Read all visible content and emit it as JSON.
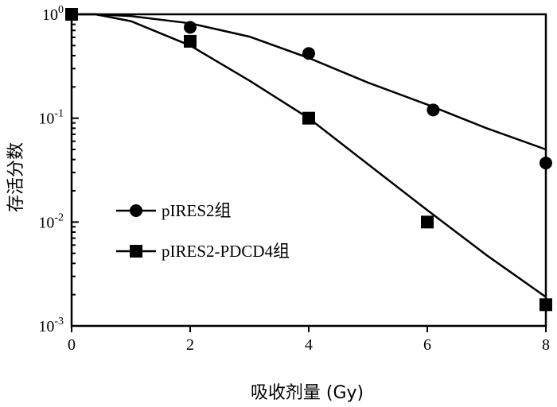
{
  "chart_data": {
    "type": "scatter",
    "title": "",
    "xlabel": "吸收剂量 (Gy)",
    "ylabel": "存活分数",
    "xlim": [
      0,
      8
    ],
    "ylim": [
      0.001,
      1
    ],
    "yscale": "log",
    "grid": false,
    "legend_position": "center-left",
    "x_ticks": [
      0,
      2,
      4,
      6,
      8
    ],
    "y_ticks": [
      {
        "base": "10",
        "exp": "0"
      },
      {
        "base": "10",
        "exp": "-1"
      },
      {
        "base": "10",
        "exp": "-2"
      },
      {
        "base": "10",
        "exp": "-3"
      }
    ],
    "series": [
      {
        "name": "pIRES2组",
        "marker": "circle",
        "points": [
          [
            0,
            1.0
          ],
          [
            2,
            0.75
          ],
          [
            4,
            0.42
          ],
          [
            6.1,
            0.12
          ],
          [
            8,
            0.037
          ]
        ],
        "fit": [
          [
            0,
            1.0
          ],
          [
            0.4,
            1.0
          ],
          [
            1,
            0.96
          ],
          [
            2,
            0.82
          ],
          [
            3,
            0.61
          ],
          [
            4,
            0.38
          ],
          [
            5,
            0.22
          ],
          [
            6,
            0.135
          ],
          [
            7,
            0.08
          ],
          [
            8,
            0.05
          ]
        ]
      },
      {
        "name": "pIRES2-PDCD4组",
        "marker": "square",
        "points": [
          [
            0,
            1.0
          ],
          [
            2,
            0.55
          ],
          [
            4,
            0.1
          ],
          [
            6,
            0.01
          ],
          [
            8,
            0.0016
          ]
        ],
        "fit": [
          [
            0,
            1.0
          ],
          [
            0.4,
            1.0
          ],
          [
            1,
            0.86
          ],
          [
            2,
            0.5
          ],
          [
            3,
            0.23
          ],
          [
            4,
            0.1
          ],
          [
            5,
            0.036
          ],
          [
            6,
            0.013
          ],
          [
            7,
            0.0048
          ],
          [
            8,
            0.0019
          ]
        ]
      }
    ],
    "colors": {
      "axis": "#000000",
      "marker": "#000000",
      "background": "#ffffff"
    }
  }
}
